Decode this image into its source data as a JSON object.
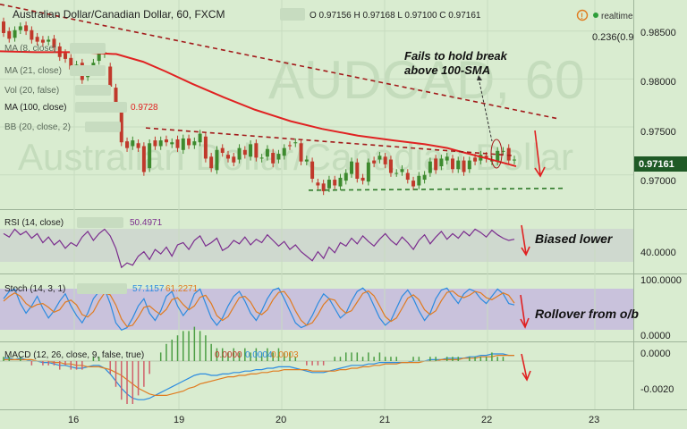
{
  "header": {
    "title": "Australian Dollar/Canadian Dollar, 60, FXCM",
    "ohlc": "O 0.97156 H 0.97168 L 0.97100 C 0.97161",
    "realtime_label": "realtime",
    "fib_label": "0.236(0.9"
  },
  "watermark": {
    "line1": "AUDCAD, 60",
    "line2": "Australian Dollar/Canadian Dollar"
  },
  "indicators": {
    "ema1": "MA (8, close)",
    "ema2": "MA (21, close)",
    "vol": "Vol (20, false)",
    "ma100": "MA (100, close)",
    "ma100_value": "0.9728",
    "bb": "BB (20, close, 2)",
    "rsi_label": "RSI (14, close)",
    "rsi_value": "50.4971",
    "stoch_label": "Stoch (14, 3, 1)",
    "stoch_k": "57.1157",
    "stoch_d": "61.2271",
    "macd_label": "MACD (12, 26, close, 9, false, true)",
    "macd_v1": "0.0000",
    "macd_v2": "0.0004",
    "macd_v3": "0.0003"
  },
  "annotations": {
    "break_line1": "Fails to hold break",
    "break_line2": "above 100-SMA",
    "rsi_note": "Biased lower",
    "stoch_note": "Rollover from o/b"
  },
  "price_axis": {
    "ticks": [
      "0.98500",
      "0.98000",
      "0.97500",
      "0.97000"
    ],
    "current": "0.97161"
  },
  "rsi_axis": {
    "ticks": [
      "40.0000"
    ]
  },
  "stoch_axis": {
    "ticks": [
      "100.0000",
      "0.0000"
    ]
  },
  "macd_axis": {
    "ticks": [
      "0.0000",
      "-0.0020"
    ]
  },
  "time_axis": {
    "labels": [
      "16",
      "19",
      "20",
      "21",
      "22",
      "23"
    ]
  },
  "colors": {
    "background": "#d9ecd0",
    "bull": "#3d8a2e",
    "bear": "#c0392b",
    "sma100": "#e02222",
    "trend": "#a31a1a",
    "support": "#2f7a2a",
    "rsi": "#7b2d8e",
    "stoch_k": "#2b8be0",
    "stoch_d": "#e07b1f",
    "macd": "#2b8be0",
    "signal": "#e07b1f",
    "arrow": "#e02020"
  },
  "chart_data": [
    {
      "type": "candlestick",
      "title": "Australian Dollar/Canadian Dollar, 60, FXCM",
      "ylim": [
        0.9668,
        0.9875
      ],
      "x_labels": [
        "16",
        "19",
        "20",
        "21",
        "22",
        "23"
      ],
      "sma100": [
        [
          0,
          0.9829
        ],
        [
          40,
          0.9828
        ],
        [
          90,
          0.9828
        ],
        [
          130,
          0.9826
        ],
        [
          160,
          0.9818
        ],
        [
          185,
          0.9808
        ],
        [
          215,
          0.9795
        ],
        [
          250,
          0.9781
        ],
        [
          285,
          0.9768
        ],
        [
          325,
          0.9756
        ],
        [
          360,
          0.9748
        ],
        [
          400,
          0.9741
        ],
        [
          440,
          0.9736
        ],
        [
          475,
          0.9732
        ],
        [
          500,
          0.9728
        ],
        [
          520,
          0.9723
        ],
        [
          545,
          0.9717
        ],
        [
          565,
          0.9712
        ],
        [
          577,
          0.9709
        ]
      ],
      "resistance_line": [
        [
          0,
          0.9878
        ],
        [
          622,
          0.9759
        ]
      ],
      "lower_trendline": [
        [
          163,
          0.9749
        ],
        [
          575,
          0.972
        ]
      ],
      "support_line": [
        [
          345,
          0.9684
        ],
        [
          632,
          0.9686
        ]
      ],
      "candles": [
        [
          0.986,
          0.9848
        ],
        [
          0.985,
          0.9842
        ],
        [
          0.9843,
          0.9851
        ],
        [
          0.9851,
          0.9855
        ],
        [
          0.9856,
          0.985
        ],
        [
          0.9851,
          0.9841
        ],
        [
          0.9844,
          0.9839
        ],
        [
          0.9841,
          0.9838
        ],
        [
          0.9839,
          0.9841
        ],
        [
          0.9842,
          0.9833
        ],
        [
          0.9834,
          0.9823
        ],
        [
          0.9827,
          0.9821
        ],
        [
          0.9822,
          0.981
        ],
        [
          0.9812,
          0.9815
        ],
        [
          0.9817,
          0.9799
        ],
        [
          0.9802,
          0.981
        ],
        [
          0.9809,
          0.9817
        ],
        [
          0.9819,
          0.9827
        ],
        [
          0.9826,
          0.9828
        ],
        [
          0.9813,
          0.9792
        ],
        [
          0.9791,
          0.9772
        ],
        [
          0.9768,
          0.9734
        ],
        [
          0.9735,
          0.9728
        ],
        [
          0.973,
          0.9736
        ],
        [
          0.9733,
          0.9728
        ],
        [
          0.973,
          0.9703
        ],
        [
          0.9707,
          0.9733
        ],
        [
          0.9736,
          0.973
        ],
        [
          0.973,
          0.9736
        ],
        [
          0.9737,
          0.9734
        ],
        [
          0.9732,
          0.9734
        ],
        [
          0.9737,
          0.9728
        ],
        [
          0.9726,
          0.9738
        ],
        [
          0.9738,
          0.9731
        ],
        [
          0.9731,
          0.9735
        ],
        [
          0.9734,
          0.9743
        ],
        [
          0.974,
          0.9717
        ],
        [
          0.9719,
          0.9707
        ],
        [
          0.9705,
          0.9726
        ],
        [
          0.9728,
          0.9723
        ],
        [
          0.9721,
          0.9717
        ],
        [
          0.9719,
          0.9713
        ],
        [
          0.9716,
          0.9728
        ],
        [
          0.9726,
          0.9721
        ],
        [
          0.9719,
          0.9732
        ],
        [
          0.9733,
          0.9718
        ],
        [
          0.9717,
          0.9718
        ],
        [
          0.9719,
          0.9727
        ],
        [
          0.9723,
          0.9712
        ],
        [
          0.9716,
          0.9722
        ],
        [
          0.972,
          0.9728
        ],
        [
          0.9731,
          0.973
        ],
        [
          0.9733,
          0.9734
        ],
        [
          0.9733,
          0.9714
        ],
        [
          0.9714,
          0.9716
        ],
        [
          0.9714,
          0.9696
        ],
        [
          0.9692,
          0.9689
        ],
        [
          0.9691,
          0.9683
        ],
        [
          0.9686,
          0.9695
        ],
        [
          0.9695,
          0.9689
        ],
        [
          0.9688,
          0.9697
        ],
        [
          0.9694,
          0.9702
        ],
        [
          0.9701,
          0.9714
        ],
        [
          0.9713,
          0.9696
        ],
        [
          0.9697,
          0.9694
        ],
        [
          0.9693,
          0.9713
        ],
        [
          0.9715,
          0.9712
        ],
        [
          0.9716,
          0.972
        ],
        [
          0.9719,
          0.9711
        ],
        [
          0.9716,
          0.9702
        ],
        [
          0.9702,
          0.9702
        ],
        [
          0.9703,
          0.9706
        ],
        [
          0.9702,
          0.9695
        ],
        [
          0.9694,
          0.9688
        ],
        [
          0.9689,
          0.9699
        ],
        [
          0.9695,
          0.97
        ],
        [
          0.9702,
          0.9714
        ],
        [
          0.9717,
          0.9705
        ],
        [
          0.9709,
          0.9717
        ],
        [
          0.9715,
          0.9719
        ],
        [
          0.9717,
          0.9706
        ],
        [
          0.9706,
          0.9715
        ],
        [
          0.9715,
          0.9703
        ],
        [
          0.9706,
          0.9715
        ],
        [
          0.9718,
          0.9714
        ],
        [
          0.9715,
          0.9721
        ],
        [
          0.972,
          0.9717
        ],
        [
          0.9714,
          0.9716
        ],
        [
          0.9714,
          0.9725
        ],
        [
          0.9725,
          0.9725
        ],
        [
          0.9728,
          0.9715
        ],
        [
          0.9715,
          0.9716
        ]
      ],
      "series": [
        {
          "name": "RSI (14, close)",
          "ylim": [
            25,
            75
          ],
          "values": [
            58,
            55,
            62,
            57,
            60,
            54,
            58,
            50,
            55,
            48,
            52,
            45,
            50,
            47,
            55,
            60,
            52,
            58,
            62,
            56,
            45,
            28,
            32,
            30,
            38,
            42,
            35,
            44,
            40,
            46,
            38,
            48,
            50,
            44,
            52,
            56,
            47,
            50,
            54,
            43,
            46,
            52,
            49,
            55,
            48,
            53,
            50,
            57,
            52,
            47,
            51,
            44,
            48,
            42,
            38,
            34,
            42,
            36,
            46,
            41,
            50,
            47,
            54,
            49,
            56,
            51,
            47,
            53,
            58,
            52,
            48,
            55,
            50,
            44,
            52,
            57,
            49,
            55,
            60,
            53,
            58,
            54,
            60,
            56,
            62,
            59,
            55,
            61,
            57,
            54,
            52,
            53
          ]
        },
        {
          "name": "Stoch %K (14, 3, 1)",
          "ylim": [
            0,
            100
          ],
          "values": [
            70,
            85,
            90,
            60,
            40,
            55,
            75,
            50,
            30,
            45,
            65,
            80,
            55,
            35,
            20,
            40,
            70,
            85,
            90,
            60,
            20,
            5,
            10,
            30,
            55,
            70,
            40,
            25,
            45,
            75,
            85,
            55,
            35,
            50,
            80,
            90,
            60,
            30,
            15,
            30,
            55,
            75,
            85,
            65,
            40,
            25,
            45,
            70,
            88,
            92,
            70,
            45,
            20,
            10,
            15,
            35,
            60,
            80,
            70,
            50,
            30,
            40,
            65,
            85,
            92,
            80,
            55,
            30,
            15,
            25,
            50,
            75,
            88,
            70,
            45,
            25,
            40,
            70,
            88,
            92,
            75,
            60,
            80,
            90,
            85,
            70,
            60,
            75,
            90,
            80,
            60,
            57
          ]
        },
        {
          "name": "Stoch %D",
          "ylim": [
            0,
            100
          ],
          "values": [
            65,
            75,
            82,
            75,
            60,
            52,
            58,
            60,
            52,
            42,
            47,
            63,
            67,
            57,
            37,
            32,
            43,
            65,
            82,
            78,
            57,
            28,
            12,
            15,
            32,
            52,
            55,
            45,
            37,
            48,
            68,
            72,
            58,
            47,
            55,
            73,
            77,
            60,
            35,
            25,
            33,
            53,
            72,
            75,
            63,
            43,
            37,
            47,
            68,
            83,
            85,
            69,
            45,
            25,
            15,
            20,
            37,
            58,
            70,
            67,
            50,
            40,
            45,
            63,
            81,
            86,
            76,
            55,
            33,
            23,
            30,
            50,
            71,
            78,
            68,
            47,
            37,
            45,
            66,
            83,
            86,
            76,
            72,
            77,
            85,
            82,
            72,
            68,
            75,
            82,
            77,
            61
          ]
        },
        {
          "name": "MACD",
          "ylim": [
            -0.003,
            0.001
          ],
          "values": [
            0.0002,
            0.0002,
            0.0001,
            0.0002,
            0.0001,
            0.0,
            0.0,
            -0.0001,
            -0.0001,
            -0.0002,
            -0.0003,
            -0.0003,
            -0.0004,
            -0.0005,
            -0.0005,
            -0.0004,
            -0.0003,
            -0.0003,
            -0.0005,
            -0.0009,
            -0.0014,
            -0.0019,
            -0.0023,
            -0.0026,
            -0.0027,
            -0.0027,
            -0.0026,
            -0.0024,
            -0.0022,
            -0.002,
            -0.0018,
            -0.0016,
            -0.0014,
            -0.0012,
            -0.001,
            -0.0009,
            -0.0009,
            -0.001,
            -0.001,
            -0.0009,
            -0.0009,
            -0.0008,
            -0.0008,
            -0.0007,
            -0.0007,
            -0.0006,
            -0.0006,
            -0.0005,
            -0.0005,
            -0.0004,
            -0.0004,
            -0.0004,
            -0.0005,
            -0.0006,
            -0.0007,
            -0.0008,
            -0.0008,
            -0.0008,
            -0.0007,
            -0.0006,
            -0.0005,
            -0.0004,
            -0.0003,
            -0.0003,
            -0.0003,
            -0.0002,
            -0.0002,
            -0.0001,
            -0.0001,
            -0.0001,
            -0.0001,
            -0.0001,
            -0.0001,
            0.0,
            0.0,
            0.0,
            0.0001,
            0.0001,
            0.0001,
            0.0002,
            0.0002,
            0.0002,
            0.0002,
            0.0003,
            0.0003,
            0.0004,
            0.0004,
            0.0005,
            0.0005,
            0.0005,
            0.0004,
            0.0004
          ]
        },
        {
          "name": "Signal",
          "ylim": [
            -0.003,
            0.001
          ],
          "values": [
            0.0001,
            0.0001,
            0.0001,
            0.0001,
            0.0001,
            0.0001,
            0.0,
            0.0,
            0.0,
            -0.0001,
            -0.0001,
            -0.0002,
            -0.0002,
            -0.0003,
            -0.0003,
            -0.0004,
            -0.0004,
            -0.0004,
            -0.0005,
            -0.0006,
            -0.0008,
            -0.001,
            -0.0013,
            -0.0016,
            -0.0019,
            -0.0021,
            -0.0023,
            -0.0024,
            -0.0024,
            -0.0024,
            -0.0023,
            -0.0022,
            -0.0021,
            -0.0019,
            -0.0018,
            -0.0016,
            -0.0015,
            -0.0014,
            -0.0013,
            -0.0012,
            -0.0011,
            -0.0011,
            -0.001,
            -0.001,
            -0.0009,
            -0.0009,
            -0.0008,
            -0.0008,
            -0.0007,
            -0.0007,
            -0.0006,
            -0.0006,
            -0.0006,
            -0.0006,
            -0.0006,
            -0.0007,
            -0.0007,
            -0.0007,
            -0.0007,
            -0.0007,
            -0.0006,
            -0.0006,
            -0.0005,
            -0.0005,
            -0.0004,
            -0.0004,
            -0.0003,
            -0.0003,
            -0.0002,
            -0.0002,
            -0.0002,
            -0.0001,
            -0.0001,
            -0.0001,
            -0.0001,
            0.0,
            0.0,
            0.0,
            0.0001,
            0.0001,
            0.0001,
            0.0001,
            0.0002,
            0.0002,
            0.0002,
            0.0003,
            0.0003,
            0.0003,
            0.0004,
            0.0004,
            0.0004,
            0.0004
          ]
        }
      ]
    }
  ]
}
